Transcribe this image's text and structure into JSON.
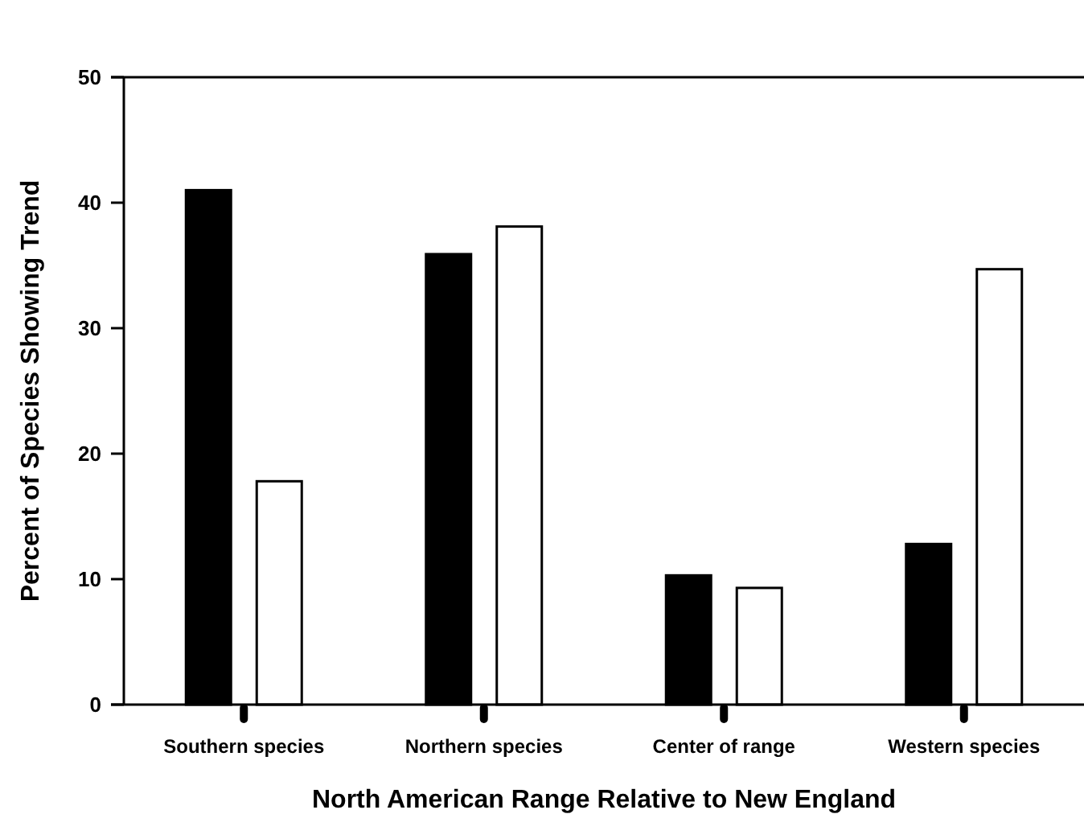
{
  "chart_data": {
    "type": "bar",
    "xlabel": "North American Range Relative to New England",
    "ylabel": "Percent of Species Showing Trend",
    "categories": [
      "Southern species",
      "Northern species",
      "Center of range",
      "Western species"
    ],
    "series": [
      {
        "color": "#000000",
        "values": [
          41.0,
          35.9,
          10.3,
          12.8
        ]
      },
      {
        "color": "#ffffff",
        "values": [
          17.8,
          38.1,
          9.3,
          34.7
        ]
      }
    ],
    "ylim": [
      0,
      50
    ],
    "yticks": [
      0,
      10,
      20,
      30,
      40,
      50
    ],
    "grid": false
  }
}
